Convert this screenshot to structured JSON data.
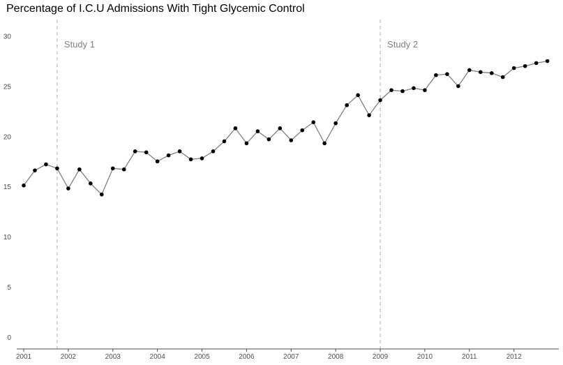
{
  "chart_data": {
    "type": "line",
    "title": "Percentage of I.C.U Admissions With Tight Glycemic Control",
    "xlabel": "",
    "ylabel": "",
    "xlim": [
      2001,
      2012.85
    ],
    "ylim": [
      -1.2,
      31.5
    ],
    "grid": false,
    "x_ticks": [
      2001,
      2002,
      2003,
      2004,
      2005,
      2006,
      2007,
      2008,
      2009,
      2010,
      2011,
      2012
    ],
    "x_tick_labels": [
      "2001",
      "2002",
      "2003",
      "2004",
      "2005",
      "2006",
      "2007",
      "2008",
      "2009",
      "2010",
      "2011",
      "2012"
    ],
    "y_ticks": [
      0,
      5,
      10,
      15,
      20,
      25,
      30
    ],
    "y_tick_labels": [
      "0",
      "5",
      "10",
      "15",
      "20",
      "25",
      "30"
    ],
    "annotations": [
      {
        "label": "Study 1",
        "x": 2001.75
      },
      {
        "label": "Study 2",
        "x": 2009.0
      }
    ],
    "series": [
      {
        "x": [
          2001.0,
          2001.25,
          2001.5,
          2001.75,
          2002.0,
          2002.25,
          2002.5,
          2002.75,
          2003.0,
          2003.25,
          2003.5,
          2003.75,
          2004.0,
          2004.25,
          2004.5,
          2004.75,
          2005.0,
          2005.25,
          2005.5,
          2005.75,
          2006.0,
          2006.25,
          2006.5,
          2006.75,
          2007.0,
          2007.25,
          2007.5,
          2007.75,
          2008.0,
          2008.25,
          2008.5,
          2008.75,
          2009.0,
          2009.25,
          2009.5,
          2009.75,
          2010.0,
          2010.25,
          2010.5,
          2010.75,
          2011.0,
          2011.25,
          2011.5,
          2011.75,
          2012.0,
          2012.25,
          2012.5,
          2012.75
        ],
        "values": [
          15.1,
          16.6,
          17.2,
          16.8,
          14.8,
          16.7,
          15.3,
          14.2,
          16.8,
          16.7,
          18.5,
          18.4,
          17.5,
          18.1,
          18.5,
          17.7,
          17.8,
          18.5,
          19.5,
          20.8,
          19.3,
          20.5,
          19.7,
          20.8,
          19.6,
          20.6,
          21.4,
          19.3,
          21.3,
          23.1,
          24.1,
          22.1,
          23.6,
          24.6,
          24.5,
          24.8,
          24.6,
          26.1,
          26.2,
          25.0,
          26.6,
          26.4,
          26.3,
          25.9,
          26.8,
          27.0,
          27.3,
          27.5
        ]
      }
    ],
    "colors": {
      "line": "#7f7f7f",
      "point": "#000000",
      "annotation_line": "#bdbdbd",
      "annotation_text": "#808080",
      "axis": "#4d4d4d",
      "tick_text": "#4d4d4d"
    }
  }
}
